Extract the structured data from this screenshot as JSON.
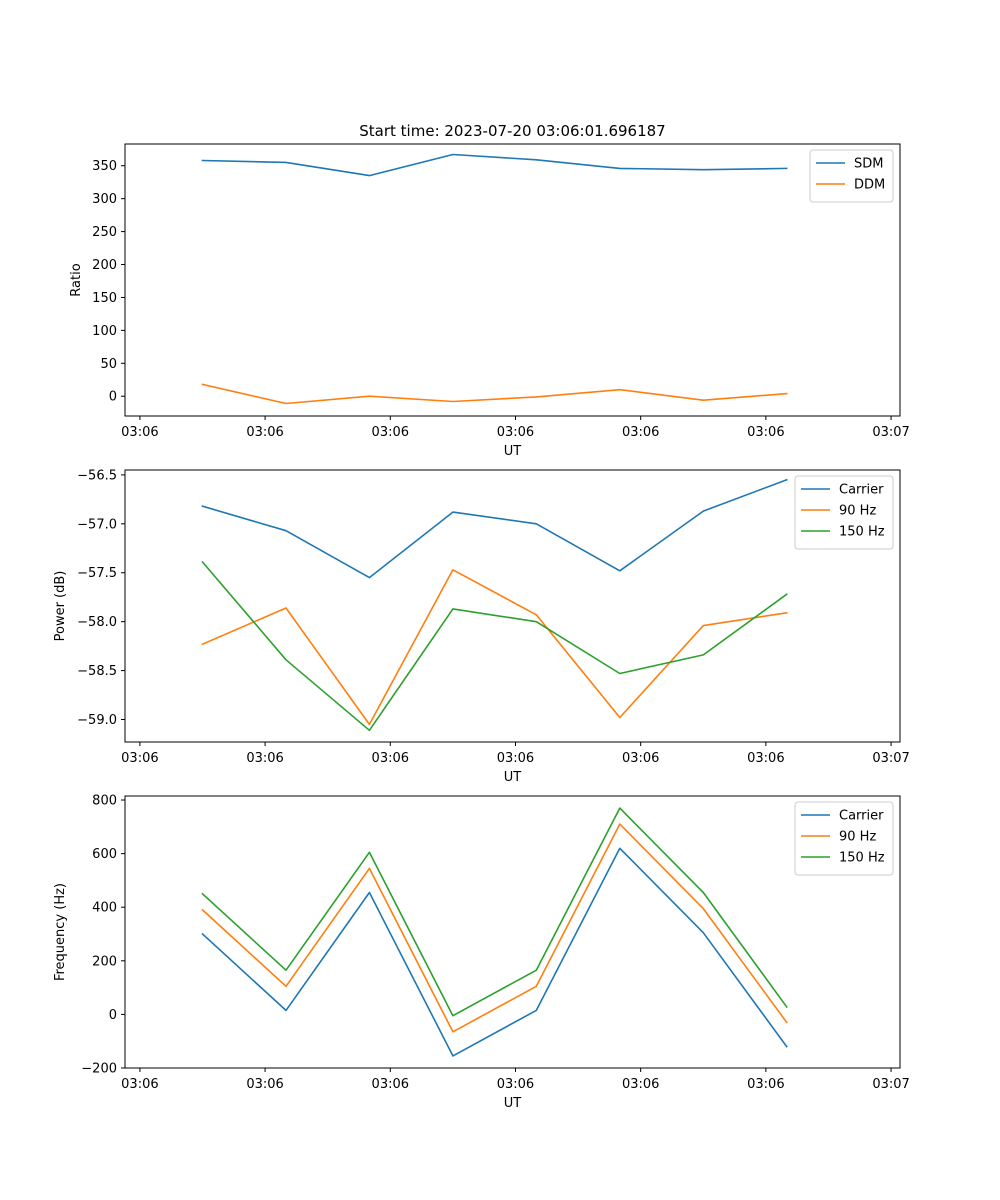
{
  "figure_title": "Start time: 2023-07-20 03:06:01.696187",
  "colors": {
    "blue": "#1f77b4",
    "orange": "#ff7f0e",
    "green": "#2ca02c"
  },
  "chart_data": [
    {
      "type": "line",
      "name": "ratio",
      "title": "Start time: 2023-07-20 03:06:01.696187",
      "xlabel": "UT",
      "ylabel": "Ratio",
      "xlim": [
        -0.4,
        20.4
      ],
      "ylim": [
        -30,
        383
      ],
      "x_ticks": [
        0,
        3.36,
        6.72,
        10.08,
        13.44,
        16.8,
        20.16
      ],
      "x_tick_labels": [
        "03:06",
        "03:06",
        "03:06",
        "03:06",
        "03:06",
        "03:06",
        "03:07"
      ],
      "y_ticks": [
        0,
        50,
        100,
        150,
        200,
        250,
        300,
        350
      ],
      "y_tick_labels": [
        "0",
        "50",
        "100",
        "150",
        "200",
        "250",
        "300",
        "350"
      ],
      "legend_position": "top-right",
      "x": [
        1.68,
        3.92,
        6.16,
        8.4,
        10.64,
        12.88,
        15.12,
        17.36
      ],
      "series": [
        {
          "name": "SDM",
          "color": "#1f77b4",
          "values": [
            358,
            355,
            335,
            367,
            359,
            346,
            344,
            346
          ]
        },
        {
          "name": "DDM",
          "color": "#ff7f0e",
          "values": [
            18,
            -11,
            0,
            -8,
            -1,
            10,
            -6,
            4
          ]
        }
      ]
    },
    {
      "type": "line",
      "name": "power",
      "title": "",
      "xlabel": "UT",
      "ylabel": "Power (dB)",
      "xlim": [
        -0.4,
        20.4
      ],
      "ylim": [
        -59.23,
        -56.45
      ],
      "x_ticks": [
        0,
        3.36,
        6.72,
        10.08,
        13.44,
        16.8,
        20.16
      ],
      "x_tick_labels": [
        "03:06",
        "03:06",
        "03:06",
        "03:06",
        "03:06",
        "03:06",
        "03:07"
      ],
      "y_ticks": [
        -59.0,
        -58.5,
        -58.0,
        -57.5,
        -57.0,
        -56.5
      ],
      "y_tick_labels": [
        "−59.0",
        "−58.5",
        "−58.0",
        "−57.5",
        "−57.0",
        "−56.5"
      ],
      "legend_position": "top-right",
      "x": [
        1.68,
        3.92,
        6.16,
        8.4,
        10.64,
        12.88,
        15.12,
        17.36
      ],
      "series": [
        {
          "name": "Carrier",
          "color": "#1f77b4",
          "values": [
            -56.82,
            -57.07,
            -57.55,
            -56.88,
            -57.0,
            -57.48,
            -56.87,
            -56.55
          ]
        },
        {
          "name": "90 Hz",
          "color": "#ff7f0e",
          "values": [
            -58.23,
            -57.86,
            -59.05,
            -57.47,
            -57.93,
            -58.98,
            -58.04,
            -57.91
          ]
        },
        {
          "name": "150 Hz",
          "color": "#2ca02c",
          "values": [
            -57.39,
            -58.39,
            -59.11,
            -57.87,
            -58.0,
            -58.53,
            -58.34,
            -57.72
          ]
        }
      ]
    },
    {
      "type": "line",
      "name": "frequency",
      "title": "",
      "xlabel": "UT",
      "ylabel": "Frequency (Hz)",
      "xlim": [
        -0.4,
        20.4
      ],
      "ylim": [
        -200,
        815
      ],
      "x_ticks": [
        0,
        3.36,
        6.72,
        10.08,
        13.44,
        16.8,
        20.16
      ],
      "x_tick_labels": [
        "03:06",
        "03:06",
        "03:06",
        "03:06",
        "03:06",
        "03:06",
        "03:07"
      ],
      "y_ticks": [
        -200,
        0,
        200,
        400,
        600,
        800
      ],
      "y_tick_labels": [
        "−200",
        "0",
        "200",
        "400",
        "600",
        "800"
      ],
      "legend_position": "top-right",
      "x": [
        1.68,
        3.92,
        6.16,
        8.4,
        10.64,
        12.88,
        15.12,
        17.36
      ],
      "series": [
        {
          "name": "Carrier",
          "color": "#1f77b4",
          "values": [
            300,
            15,
            455,
            -155,
            15,
            620,
            305,
            -120
          ]
        },
        {
          "name": "90 Hz",
          "color": "#ff7f0e",
          "values": [
            390,
            105,
            545,
            -65,
            105,
            710,
            395,
            -30
          ]
        },
        {
          "name": "150 Hz",
          "color": "#2ca02c",
          "values": [
            450,
            165,
            605,
            -5,
            165,
            770,
            455,
            28
          ]
        }
      ]
    }
  ]
}
